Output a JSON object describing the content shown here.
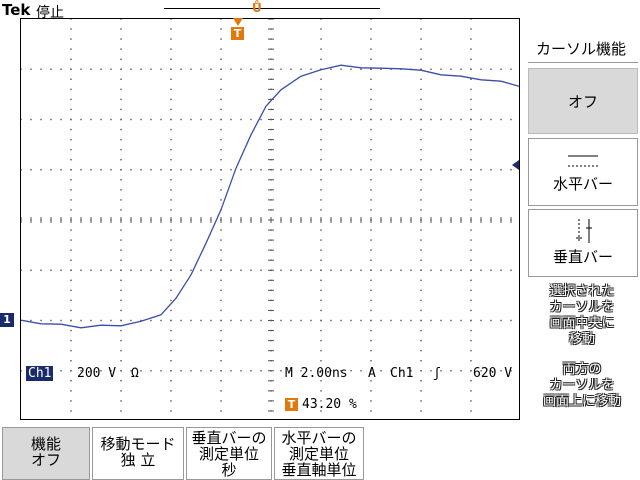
{
  "header": {
    "brand": "Tek",
    "status": "停止"
  },
  "trigger": {
    "marker_glyph": "T",
    "position_glyph": "Ů"
  },
  "channel": {
    "marker_label": "1"
  },
  "readouts": {
    "ch1_label": "Ch1",
    "ch1_scale": "200 V",
    "ch1_coupling": "Ω",
    "timebase": "M 2.00ns",
    "trigger_mode": "A",
    "trigger_source": "Ch1",
    "trigger_slope": "ʃ",
    "trigger_level": "620 V",
    "trigger_position_glyph": "T",
    "trigger_position": "43.20 %"
  },
  "right_menu": {
    "title": "カーソル機能",
    "options": [
      {
        "label": "オフ",
        "selected": true
      },
      {
        "label": "水平バー",
        "icon": "horizontal-bars-icon"
      },
      {
        "label": "垂直バー",
        "icon": "vertical-bars-icon"
      }
    ],
    "hints": [
      {
        "lines": [
          "選択された",
          "カーソルを",
          "画面中央に",
          "移動"
        ]
      },
      {
        "lines": [
          "両方の",
          "カーソルを",
          "画面上に移動"
        ]
      }
    ]
  },
  "bottom_menu": [
    {
      "line1": "機能",
      "line2": "オフ",
      "selected": true
    },
    {
      "line1": "移動モード",
      "line2": "独 立"
    },
    {
      "line1": "垂直バーの",
      "line2": "測定単位",
      "line3": "秒"
    },
    {
      "line1": "水平バーの",
      "line2": "測定単位",
      "line3": "垂直軸単位"
    }
  ],
  "colors": {
    "trace": "#3b4ea8",
    "trigger_marker": "#e07a10",
    "channel_marker": "#1b2a6a",
    "grid": "#555555",
    "selected_button": "#d9d9d9"
  }
}
